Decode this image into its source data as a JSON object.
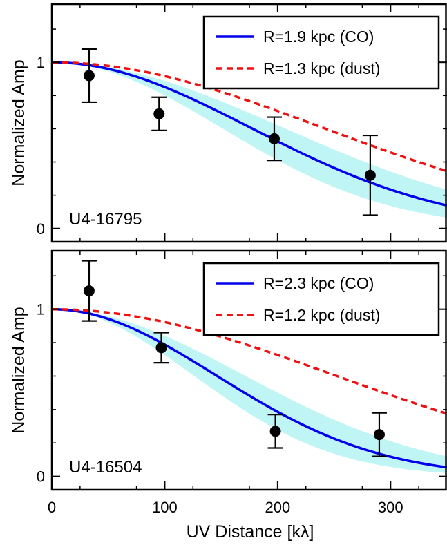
{
  "chart_data": [
    {
      "type": "scatter",
      "panel_label": "U4-16795",
      "ylabel": "Normalized Amp",
      "xlim": [
        0,
        350
      ],
      "ylim": [
        -0.08,
        1.35
      ],
      "y_ticks": [
        0,
        1
      ],
      "points": [
        {
          "x": 33,
          "y": 0.92,
          "err_low": 0.76,
          "err_high": 1.08
        },
        {
          "x": 95,
          "y": 0.69,
          "err_low": 0.59,
          "err_high": 0.79
        },
        {
          "x": 197,
          "y": 0.54,
          "err_low": 0.41,
          "err_high": 0.67
        },
        {
          "x": 282,
          "y": 0.32,
          "err_low": 0.08,
          "err_high": 0.56
        }
      ],
      "series": [
        {
          "name": "R=1.9 kpc (CO)",
          "style": "solid",
          "color": "#0000ee",
          "scale_kl": 176
        },
        {
          "name": "R=1.3 kpc (dust)",
          "style": "dashed",
          "color": "#ee1111",
          "scale_kl": 240
        }
      ],
      "band": {
        "color": "#bff5f5",
        "scale_low_kl": 150,
        "scale_high_kl": 205
      },
      "legend_position": "top-right"
    },
    {
      "type": "scatter",
      "panel_label": "U4-16504",
      "ylabel": "Normalized Amp",
      "xlim": [
        0,
        350
      ],
      "ylim": [
        -0.08,
        1.35
      ],
      "y_ticks": [
        0,
        1
      ],
      "points": [
        {
          "x": 33,
          "y": 1.11,
          "err_low": 0.93,
          "err_high": 1.29
        },
        {
          "x": 97,
          "y": 0.77,
          "err_low": 0.68,
          "err_high": 0.86
        },
        {
          "x": 198,
          "y": 0.27,
          "err_low": 0.17,
          "err_high": 0.37
        },
        {
          "x": 290,
          "y": 0.25,
          "err_low": 0.12,
          "err_high": 0.38
        }
      ],
      "series": [
        {
          "name": "R=2.3 kpc (CO)",
          "style": "solid",
          "color": "#0000ee",
          "scale_kl": 145
        },
        {
          "name": "R=1.2 kpc (dust)",
          "style": "dashed",
          "color": "#ee1111",
          "scale_kl": 250
        }
      ],
      "band": {
        "color": "#bff5f5",
        "scale_low_kl": 125,
        "scale_high_kl": 170
      },
      "legend_position": "top-right"
    }
  ],
  "x_axis": {
    "label": "UV Distance [kλ]",
    "ticks": [
      0,
      100,
      200,
      300
    ]
  }
}
